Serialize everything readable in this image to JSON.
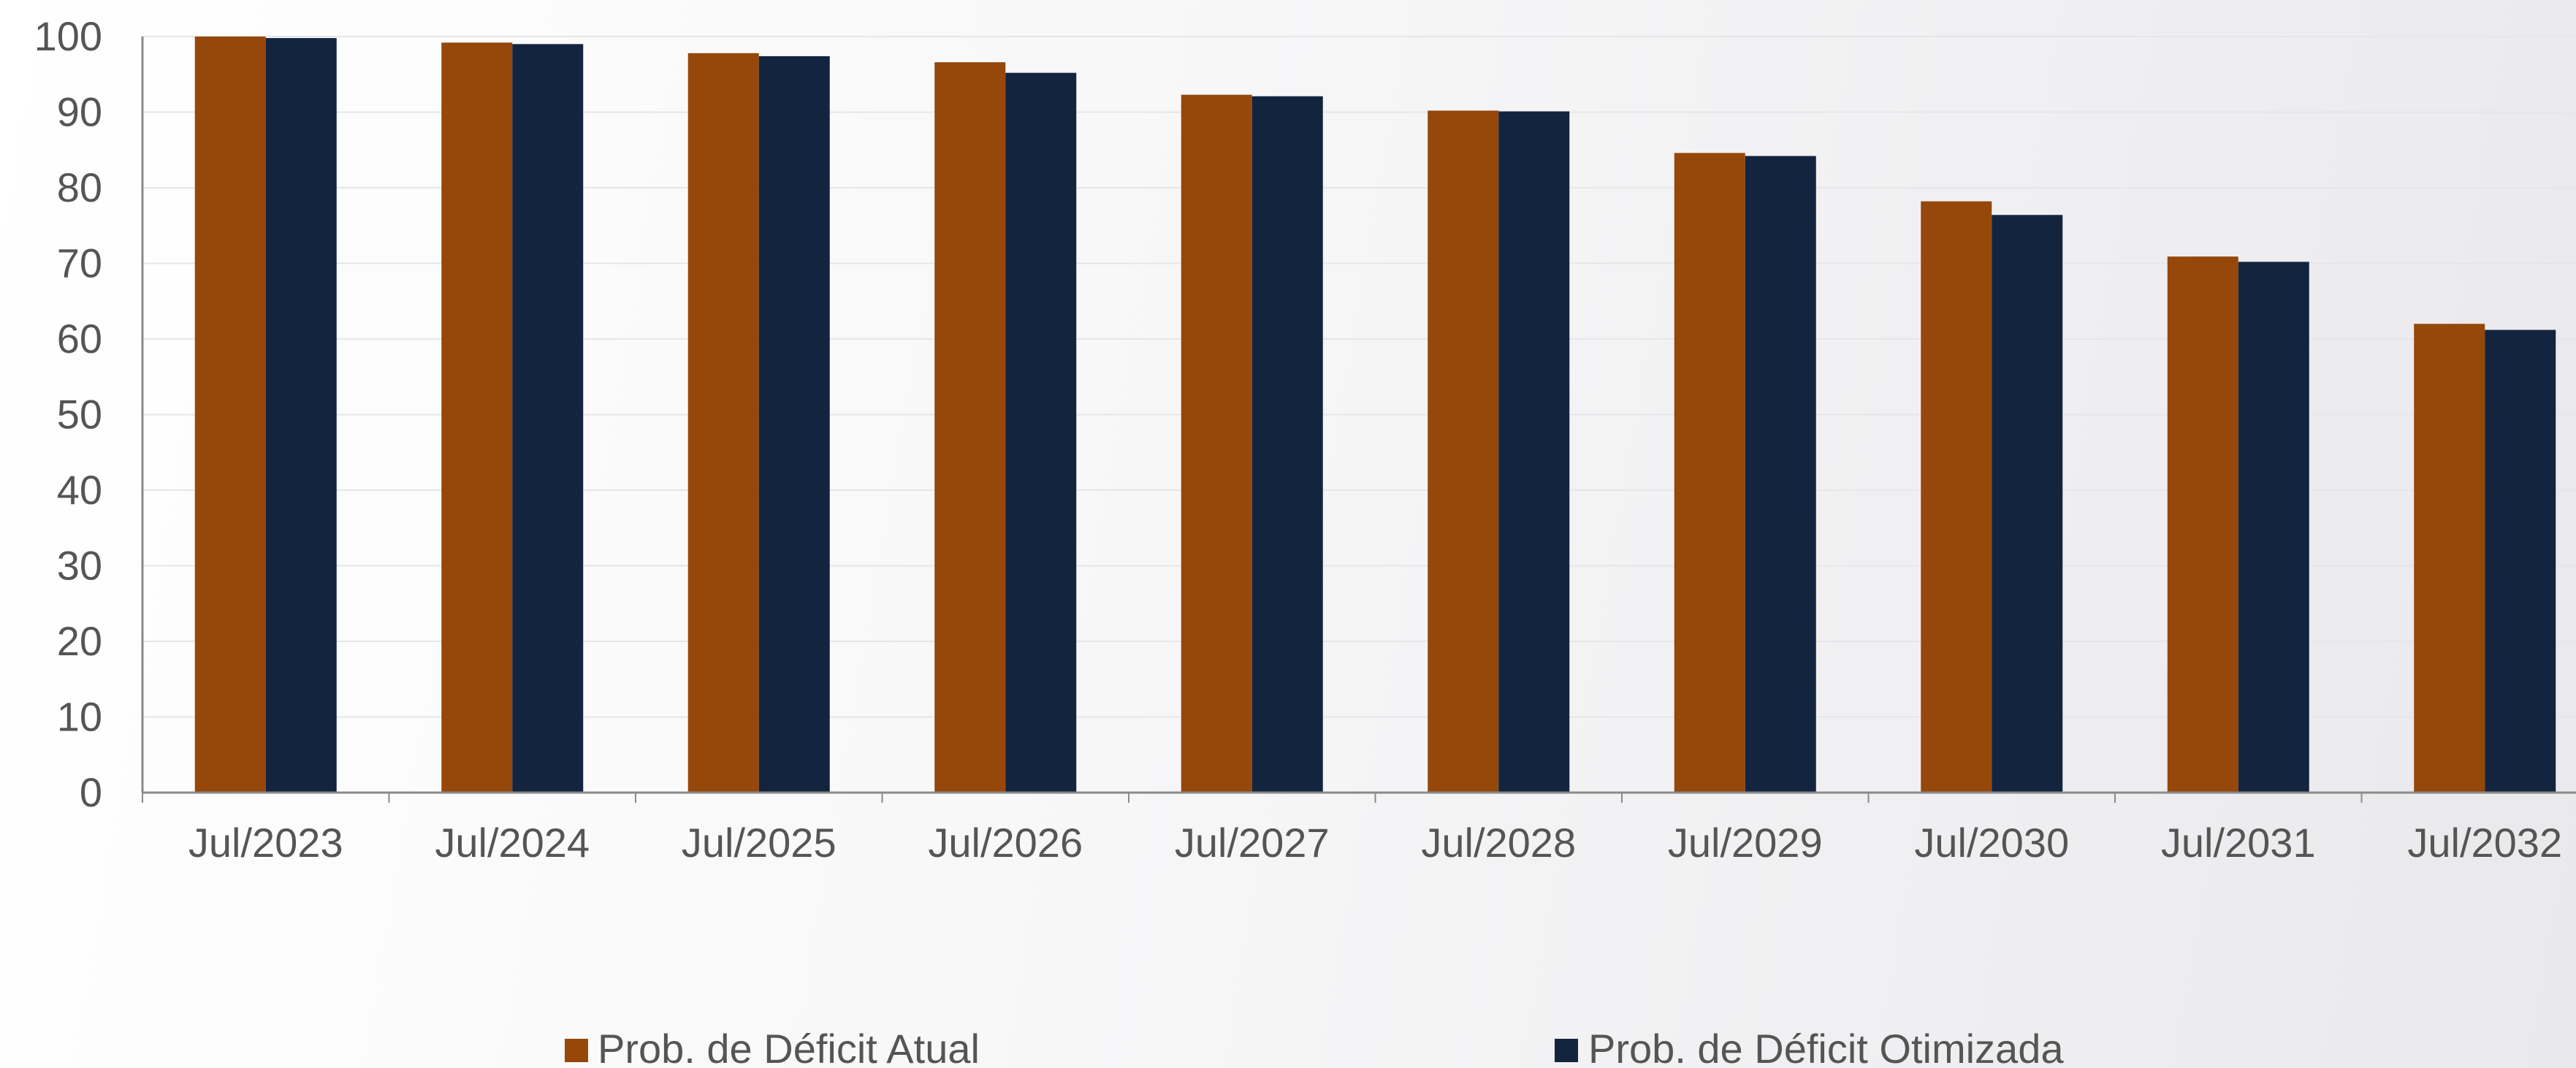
{
  "chart_data": {
    "type": "bar",
    "categories": [
      "Jul/2023",
      "Jul/2024",
      "Jul/2025",
      "Jul/2026",
      "Jul/2027",
      "Jul/2028",
      "Jul/2029",
      "Jul/2030",
      "Jul/2031",
      "Jul/2032"
    ],
    "series": [
      {
        "name": "Prob. de Déficit Atual",
        "color": "#96470A",
        "values": [
          100,
          99.2,
          97.8,
          96.6,
          92.3,
          90.2,
          84.6,
          78.2,
          70.9,
          62.0
        ]
      },
      {
        "name": "Prob. de Déficit Otimizada",
        "color": "#13243F",
        "values": [
          99.8,
          99.0,
          97.4,
          95.2,
          92.1,
          90.1,
          84.2,
          76.4,
          70.2,
          61.2
        ]
      }
    ],
    "yticks": [
      "0",
      "10",
      "20",
      "30",
      "40",
      "50",
      "60",
      "70",
      "80",
      "90",
      "100"
    ],
    "ylim": [
      0,
      100
    ],
    "title": "",
    "xlabel": "",
    "ylabel": "",
    "grid": true,
    "legend_position": "bottom"
  }
}
